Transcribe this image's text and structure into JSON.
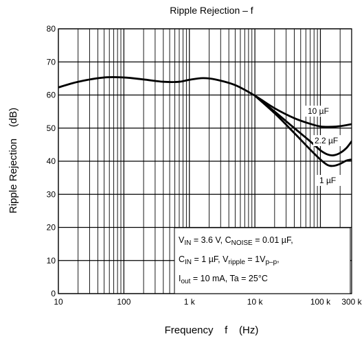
{
  "chart_data": {
    "type": "line",
    "title": "Ripple Rejection – f",
    "xlabel": "Frequency    f    (Hz)",
    "ylabel": "Ripple Rejection    (dB)",
    "x_scale": "log",
    "xlim": [
      10,
      300000
    ],
    "ylim": [
      0,
      80
    ],
    "x_ticks": [
      10,
      100,
      1000,
      10000,
      100000,
      300000
    ],
    "x_tick_labels": [
      "10",
      "100",
      "1 k",
      "10 k",
      "100 k",
      "300 k"
    ],
    "y_ticks": [
      0,
      10,
      20,
      30,
      40,
      50,
      60,
      70,
      80
    ],
    "y_tick_labels": [
      "0",
      "10",
      "20",
      "30",
      "40",
      "50",
      "60",
      "70",
      "80"
    ],
    "grid": true,
    "series": [
      {
        "name": "10 µF",
        "color": "#000000",
        "x": [
          10,
          20,
          50,
          100,
          200,
          400,
          700,
          1000,
          1600,
          2500,
          5000,
          10000,
          20000,
          40000,
          70000,
          100000,
          150000,
          200000,
          300000
        ],
        "y": [
          62.3,
          64.0,
          65.3,
          65.3,
          64.7,
          64.0,
          64.0,
          64.6,
          65.1,
          64.7,
          63.0,
          59.8,
          56.0,
          53.0,
          51.3,
          50.5,
          50.4,
          50.6,
          51.2
        ]
      },
      {
        "name": "2.2 µF",
        "color": "#000000",
        "x": [
          10000,
          20000,
          40000,
          70000,
          100000,
          130000,
          160000,
          200000,
          250000,
          300000
        ],
        "y": [
          59.8,
          55.0,
          50.0,
          46.0,
          43.3,
          42.0,
          41.8,
          42.5,
          44.0,
          46.0
        ]
      },
      {
        "name": "1 µF",
        "color": "#000000",
        "x": [
          10000,
          20000,
          40000,
          70000,
          100000,
          130000,
          160000,
          200000,
          250000,
          300000
        ],
        "y": [
          59.8,
          54.5,
          48.5,
          43.5,
          40.5,
          38.8,
          38.6,
          39.2,
          40.2,
          40.5
        ]
      }
    ],
    "curve_labels": [
      "10 µF",
      "2.2 µF",
      "1 µF"
    ],
    "annotation": [
      "VIN = 3.6 V, CNOISE = 0.01 µF,",
      "CIN = 1 µF, Vripple = 1Vp–p,",
      "Iout = 10 mA, Ta = 25°C"
    ]
  }
}
